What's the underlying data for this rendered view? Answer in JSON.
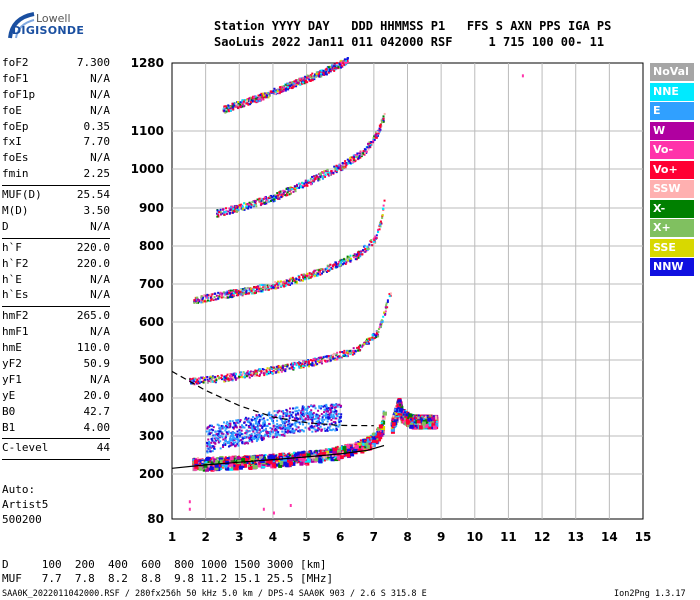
{
  "logo": {
    "top": "Lowell",
    "bottom": "DIGISONDE"
  },
  "header": {
    "line1": "Station YYYY DAY   DDD HHMMSS P1   FFS S AXN PPS IGA PS",
    "line2": "SaoLuis 2022 Jan11 011 042000 RSF     1 715 100 00- 11"
  },
  "params": [
    {
      "name": "foF2",
      "value": "7.300"
    },
    {
      "name": "foF1",
      "value": "N/A"
    },
    {
      "name": "foF1p",
      "value": "N/A"
    },
    {
      "name": "foE",
      "value": "N/A"
    },
    {
      "name": "foEp",
      "value": "0.35"
    },
    {
      "name": "fxI",
      "value": "7.70"
    },
    {
      "name": "foEs",
      "value": "N/A"
    },
    {
      "name": "fmin",
      "value": "2.25"
    },
    {
      "sep": true
    },
    {
      "name": "MUF(D)",
      "value": "25.54"
    },
    {
      "name": "M(D)",
      "value": "3.50"
    },
    {
      "name": "D",
      "value": "N/A"
    },
    {
      "sep": true
    },
    {
      "name": "h`F",
      "value": "220.0"
    },
    {
      "name": "h`F2",
      "value": "220.0"
    },
    {
      "name": "h`E",
      "value": "N/A"
    },
    {
      "name": "h`Es",
      "value": "N/A"
    },
    {
      "sep": true
    },
    {
      "name": "hmF2",
      "value": "265.0"
    },
    {
      "name": "hmF1",
      "value": "N/A"
    },
    {
      "name": "hmE",
      "value": "110.0"
    },
    {
      "name": "yF2",
      "value": "50.9"
    },
    {
      "name": "yF1",
      "value": "N/A"
    },
    {
      "name": "yE",
      "value": "20.0"
    },
    {
      "name": "B0",
      "value": "42.7"
    },
    {
      "name": "B1",
      "value": "4.00"
    },
    {
      "sep": true
    },
    {
      "name": "C-level",
      "value": "44"
    },
    {
      "sep": true
    }
  ],
  "auto": {
    "line1": "Auto:",
    "line2": "Artist5",
    "line3": "500200"
  },
  "bottom": {
    "d_row": "D     100  200  400  600  800 1000 1500 3000 [km]",
    "muf_row": "MUF   7.7  7.8  8.2  8.8  9.8 11.2 15.1 25.5 [MHz]",
    "footer": "SAA0K_2022011042000.RSF / 280fx256h 50 kHz 5.0 km / DPS-4 SAA0K 903 / 2.6 S 315.8 E",
    "version": "Ion2Png 1.3.17"
  },
  "legend": [
    {
      "label": "NoVal",
      "color": "#a6a6a6"
    },
    {
      "label": "NNE",
      "color": "#00eaff"
    },
    {
      "label": "E",
      "color": "#30a0ff"
    },
    {
      "label": "W",
      "color": "#b000a0"
    },
    {
      "label": "Vo-",
      "color": "#ff33aa"
    },
    {
      "label": "Vo+",
      "color": "#ff0033"
    },
    {
      "label": "SSW",
      "color": "#ffb0b0"
    },
    {
      "label": "X-",
      "color": "#008000"
    },
    {
      "label": "X+",
      "color": "#80c060"
    },
    {
      "label": "SSE",
      "color": "#d8d800"
    },
    {
      "label": "NNW",
      "color": "#1010e0"
    }
  ],
  "chart_data": {
    "type": "scatter",
    "xlim": [
      1,
      15
    ],
    "ylim": [
      80,
      1280
    ],
    "xticks": [
      "1",
      "2",
      "3",
      "4",
      "5",
      "6",
      "7",
      "8",
      "9",
      "10",
      "11",
      "12",
      "13",
      "14",
      "15"
    ],
    "yticks": [
      "80",
      "200",
      "300",
      "400",
      "500",
      "600",
      "700",
      "800",
      "900",
      "1000",
      "1100",
      "1280"
    ],
    "grid": true,
    "echo_traces": [
      {
        "name": "O-trace 1-hop",
        "points": [
          [
            1.6,
            232
          ],
          [
            2.5,
            236
          ],
          [
            3.5,
            240
          ],
          [
            4.5,
            246
          ],
          [
            5.5,
            256
          ],
          [
            6.3,
            270
          ],
          [
            6.9,
            292
          ],
          [
            7.2,
            325
          ],
          [
            7.3,
            385
          ]
        ]
      },
      {
        "name": "X-trace 1-hop",
        "points": [
          [
            7.5,
            330
          ],
          [
            7.6,
            360
          ],
          [
            7.7,
            390
          ],
          [
            7.8,
            360
          ],
          [
            8.1,
            345
          ],
          [
            8.5,
            345
          ],
          [
            8.8,
            345
          ]
        ]
      },
      {
        "name": "2-hop",
        "points": [
          [
            1.5,
            448
          ],
          [
            2.5,
            456
          ],
          [
            3.5,
            470
          ],
          [
            4.5,
            486
          ],
          [
            5.5,
            505
          ],
          [
            6.5,
            530
          ],
          [
            7.1,
            575
          ],
          [
            7.3,
            630
          ],
          [
            7.5,
            690
          ]
        ]
      },
      {
        "name": "3-hop",
        "points": [
          [
            1.6,
            660
          ],
          [
            2.5,
            675
          ],
          [
            3.5,
            690
          ],
          [
            4.5,
            710
          ],
          [
            5.5,
            740
          ],
          [
            6.5,
            780
          ],
          [
            7.0,
            820
          ],
          [
            7.2,
            870
          ],
          [
            7.3,
            940
          ]
        ]
      },
      {
        "name": "4-hop",
        "points": [
          [
            2.3,
            890
          ],
          [
            3.0,
            905
          ],
          [
            4.0,
            930
          ],
          [
            5.0,
            970
          ],
          [
            6.0,
            1010
          ],
          [
            6.7,
            1050
          ],
          [
            7.1,
            1100
          ],
          [
            7.3,
            1145
          ]
        ]
      },
      {
        "name": "5-hop",
        "points": [
          [
            2.5,
            1160
          ],
          [
            3.5,
            1190
          ],
          [
            4.5,
            1225
          ],
          [
            5.5,
            1260
          ],
          [
            6.2,
            1290
          ]
        ]
      },
      {
        "name": "spread F scatter",
        "points": [
          [
            2.0,
            300
          ],
          [
            3.0,
            320
          ],
          [
            4.0,
            340
          ],
          [
            5.0,
            355
          ],
          [
            6.0,
            360
          ]
        ]
      }
    ],
    "model_curves": [
      {
        "name": "solid profile",
        "points": [
          [
            1.0,
            215
          ],
          [
            2.0,
            224
          ],
          [
            3.0,
            231
          ],
          [
            4.0,
            238
          ],
          [
            5.0,
            245
          ],
          [
            6.0,
            253
          ],
          [
            6.8,
            262
          ],
          [
            7.3,
            275
          ]
        ]
      },
      {
        "name": "dashed profile",
        "points": [
          [
            1.0,
            470
          ],
          [
            1.5,
            445
          ],
          [
            2.0,
            420
          ],
          [
            3.0,
            380
          ],
          [
            4.0,
            350
          ],
          [
            5.0,
            335
          ],
          [
            6.0,
            328
          ],
          [
            7.0,
            327
          ]
        ]
      }
    ]
  }
}
